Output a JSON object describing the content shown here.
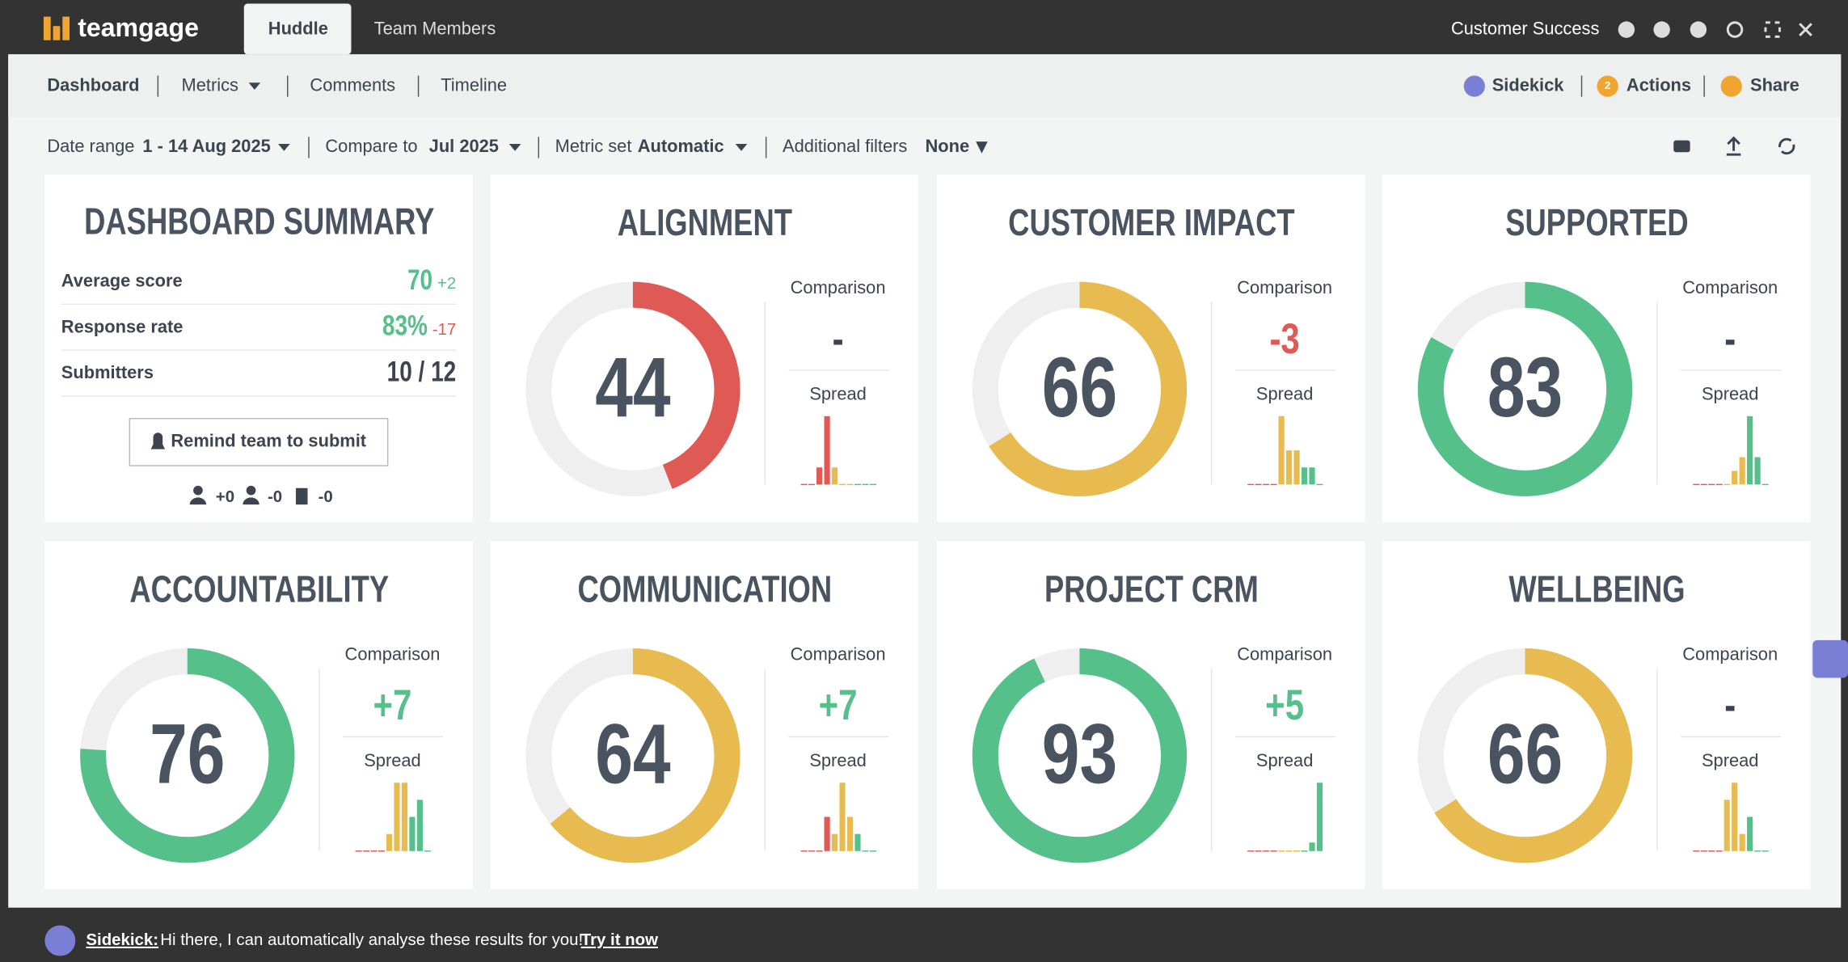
{
  "header": {
    "logo": "teamgage",
    "tabs": [
      "Huddle",
      "Team Members"
    ],
    "team": "Customer Success"
  },
  "nav": {
    "items": [
      "Dashboard",
      "Metrics",
      "Comments",
      "Timeline"
    ],
    "actions": [
      "Sidekick",
      "Actions",
      "Share"
    ],
    "actions_badge": 2
  },
  "filters": {
    "date_label": "Date range",
    "date": "1 - 14 Aug 2025",
    "compare_label": "Compare to",
    "compare": "Jul 2025",
    "metric_label": "Metric set",
    "metric": "Automatic",
    "additional_label": "Additional filters",
    "additional": "None"
  },
  "summary": {
    "title": "DASHBOARD SUMMARY",
    "rows": [
      {
        "label": "Average score",
        "value": 70,
        "change": {
          "value": 2,
          "label": "+2"
        }
      },
      {
        "label": "Response rate",
        "value": 83,
        "value_label": "83%",
        "change": -17
      },
      {
        "label": "Submitters",
        "value": "10 / 12"
      }
    ],
    "button": "Remind team to submit",
    "counts": [
      {
        "value": 0,
        "label": "+0"
      },
      {
        "value": 0,
        "label": "-0"
      },
      {
        "value": 0,
        "label": "-0"
      }
    ]
  },
  "cards": [
    {
      "title": "ALIGNMENT",
      "score": 44,
      "color": "#e05a55",
      "comparison_label": "Comparison",
      "comparison": "-",
      "spread_label": "Spread",
      "spread": [
        0,
        0,
        1,
        4,
        1,
        0,
        0,
        0,
        0,
        0
      ]
    },
    {
      "title": "CUSTOMER IMPACT",
      "score": 66,
      "color": "#e8bb50",
      "comparison_label": "Comparison",
      "comparison": {
        "value": -3,
        "label": "-3"
      },
      "spread_label": "Spread",
      "spread": [
        0,
        0,
        0,
        0,
        4,
        2,
        2,
        1,
        1,
        0
      ]
    },
    {
      "title": "SUPPORTED",
      "score": 83,
      "color": "#56c08a",
      "comparison_label": "Comparison",
      "comparison": "-",
      "spread_label": "Spread",
      "spread": [
        0,
        0,
        0,
        0,
        0,
        1,
        2,
        5,
        2,
        0
      ]
    },
    {
      "title": "ACCOUNTABILITY",
      "score": 76,
      "color": "#56c08a",
      "comparison_label": "Comparison",
      "comparison": {
        "value": 7,
        "label": "+7"
      },
      "spread_label": "Spread",
      "spread": [
        0,
        0,
        0,
        0,
        1,
        4,
        4,
        2,
        3,
        0
      ]
    },
    {
      "title": "COMMUNICATION",
      "score": 64,
      "color": "#e8bb50",
      "comparison_label": "Comparison",
      "comparison": {
        "value": 7,
        "label": "+7"
      },
      "spread_label": "Spread",
      "spread": [
        0,
        0,
        0,
        2,
        1,
        4,
        2,
        1,
        0,
        0
      ]
    },
    {
      "title": "PROJECT CRM",
      "score": 93,
      "color": "#56c08a",
      "comparison_label": "Comparison",
      "comparison": {
        "value": 5,
        "label": "+5"
      },
      "spread_label": "Spread",
      "spread": [
        0,
        0,
        0,
        0,
        0,
        0,
        0,
        0,
        1,
        8
      ]
    },
    {
      "title": "WELLBEING",
      "score": 66,
      "color": "#e8bb50",
      "comparison_label": "Comparison",
      "comparison": "-",
      "spread_label": "Spread",
      "spread": [
        0,
        0,
        0,
        0,
        3,
        4,
        1,
        2,
        0,
        0
      ]
    }
  ],
  "footer": {
    "name": "Sidekick:",
    "message": "Hi there, I can automatically analyse these results for you!",
    "link": "Try it now"
  }
}
